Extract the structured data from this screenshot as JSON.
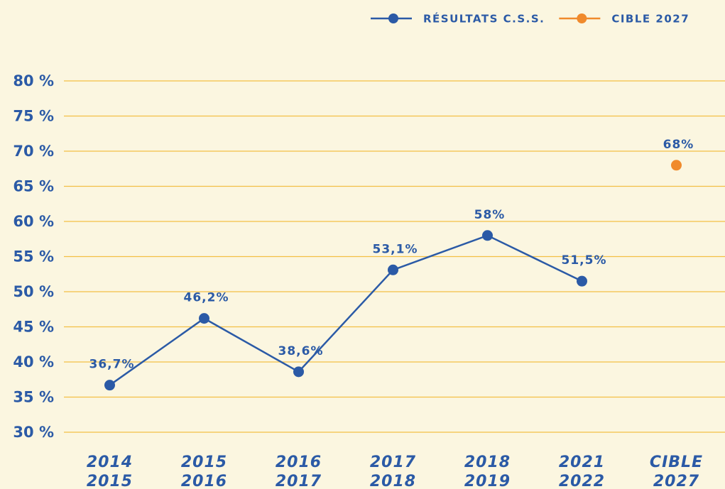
{
  "chart_data": {
    "type": "line",
    "categories": [
      [
        "2014",
        "2015"
      ],
      [
        "2015",
        "2016"
      ],
      [
        "2016",
        "2017"
      ],
      [
        "2017",
        "2018"
      ],
      [
        "2018",
        "2019"
      ],
      [
        "2021",
        "2022"
      ],
      [
        "CIBLE",
        "2027"
      ]
    ],
    "series": [
      {
        "name": "RÉSULTATS C.S.S.",
        "color": "#2b5aa6",
        "values": [
          36.7,
          46.2,
          38.6,
          53.1,
          58,
          51.5,
          null
        ],
        "value_labels": [
          "36,7%",
          "46,2%",
          "38,6%",
          "53,1%",
          "58%",
          "51,5%",
          null
        ]
      },
      {
        "name": "CIBLE 2027",
        "color": "#f08a2c",
        "values": [
          null,
          null,
          null,
          null,
          null,
          null,
          68
        ],
        "value_labels": [
          null,
          null,
          null,
          null,
          null,
          null,
          "68%"
        ]
      }
    ],
    "ylim": [
      30,
      80
    ],
    "yticks": [
      {
        "value": 30,
        "label": "30 %"
      },
      {
        "value": 35,
        "label": "35 %"
      },
      {
        "value": 40,
        "label": "40 %"
      },
      {
        "value": 45,
        "label": "45 %"
      },
      {
        "value": 50,
        "label": "50 %"
      },
      {
        "value": 55,
        "label": "55 %"
      },
      {
        "value": 60,
        "label": "60 %"
      },
      {
        "value": 65,
        "label": "65 %"
      },
      {
        "value": 70,
        "label": "70 %"
      },
      {
        "value": 75,
        "label": "75 %"
      },
      {
        "value": 80,
        "label": "80 %"
      }
    ],
    "grid": true,
    "legend": "top-right"
  }
}
